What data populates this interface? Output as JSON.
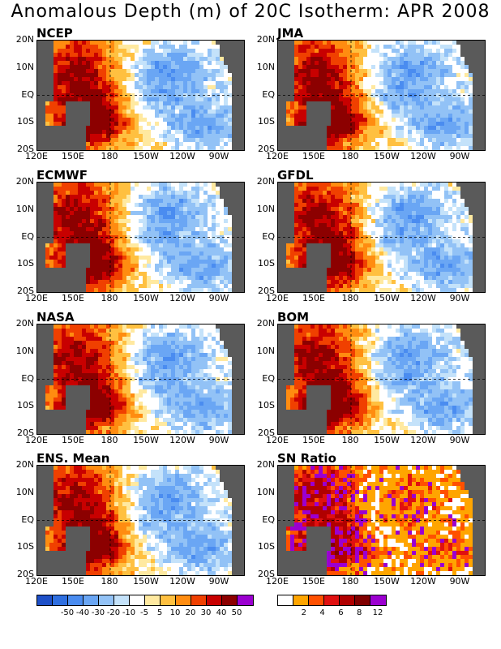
{
  "title": "Anomalous Depth (m) of 20C Isotherm: APR 2008",
  "lat_labels": [
    "20N",
    "10N",
    "EQ",
    "10S",
    "20S"
  ],
  "lon_labels": [
    "120E",
    "150E",
    "180",
    "150W",
    "120W",
    "90W"
  ],
  "panels": [
    {
      "name": "NCEP",
      "pattern": "warm-west"
    },
    {
      "name": "JMA",
      "pattern": "warm-west"
    },
    {
      "name": "ECMWF",
      "pattern": "warm-west"
    },
    {
      "name": "GFDL",
      "pattern": "warm-west"
    },
    {
      "name": "NASA",
      "pattern": "warm-west"
    },
    {
      "name": "BOM",
      "pattern": "warm-west"
    },
    {
      "name": "ENS. Mean",
      "pattern": "warm-west"
    },
    {
      "name": "SN Ratio",
      "pattern": "noise"
    }
  ],
  "anomaly_colorbar": {
    "labels": [
      "-50",
      "-40",
      "-30",
      "-20",
      "-10",
      "-5",
      "5",
      "10",
      "20",
      "30",
      "40",
      "50"
    ],
    "colors": [
      "#1e50c8",
      "#2f6fe0",
      "#4a8cf0",
      "#6aa6f4",
      "#92c2f6",
      "#c4e2fa",
      "#ffffff",
      "#ffe9a0",
      "#ffc040",
      "#ff8c10",
      "#f04000",
      "#c80000",
      "#8c0000",
      "#9b00d0"
    ]
  },
  "sn_colorbar": {
    "labels": [
      "2",
      "4",
      "6",
      "8",
      "12"
    ],
    "colors": [
      "#ffffff",
      "#ffa500",
      "#ff5000",
      "#e01010",
      "#b00000",
      "#800000",
      "#9b00d0"
    ]
  },
  "colors": {
    "land": "#5a5a5a",
    "purple": "#9b00d0"
  }
}
